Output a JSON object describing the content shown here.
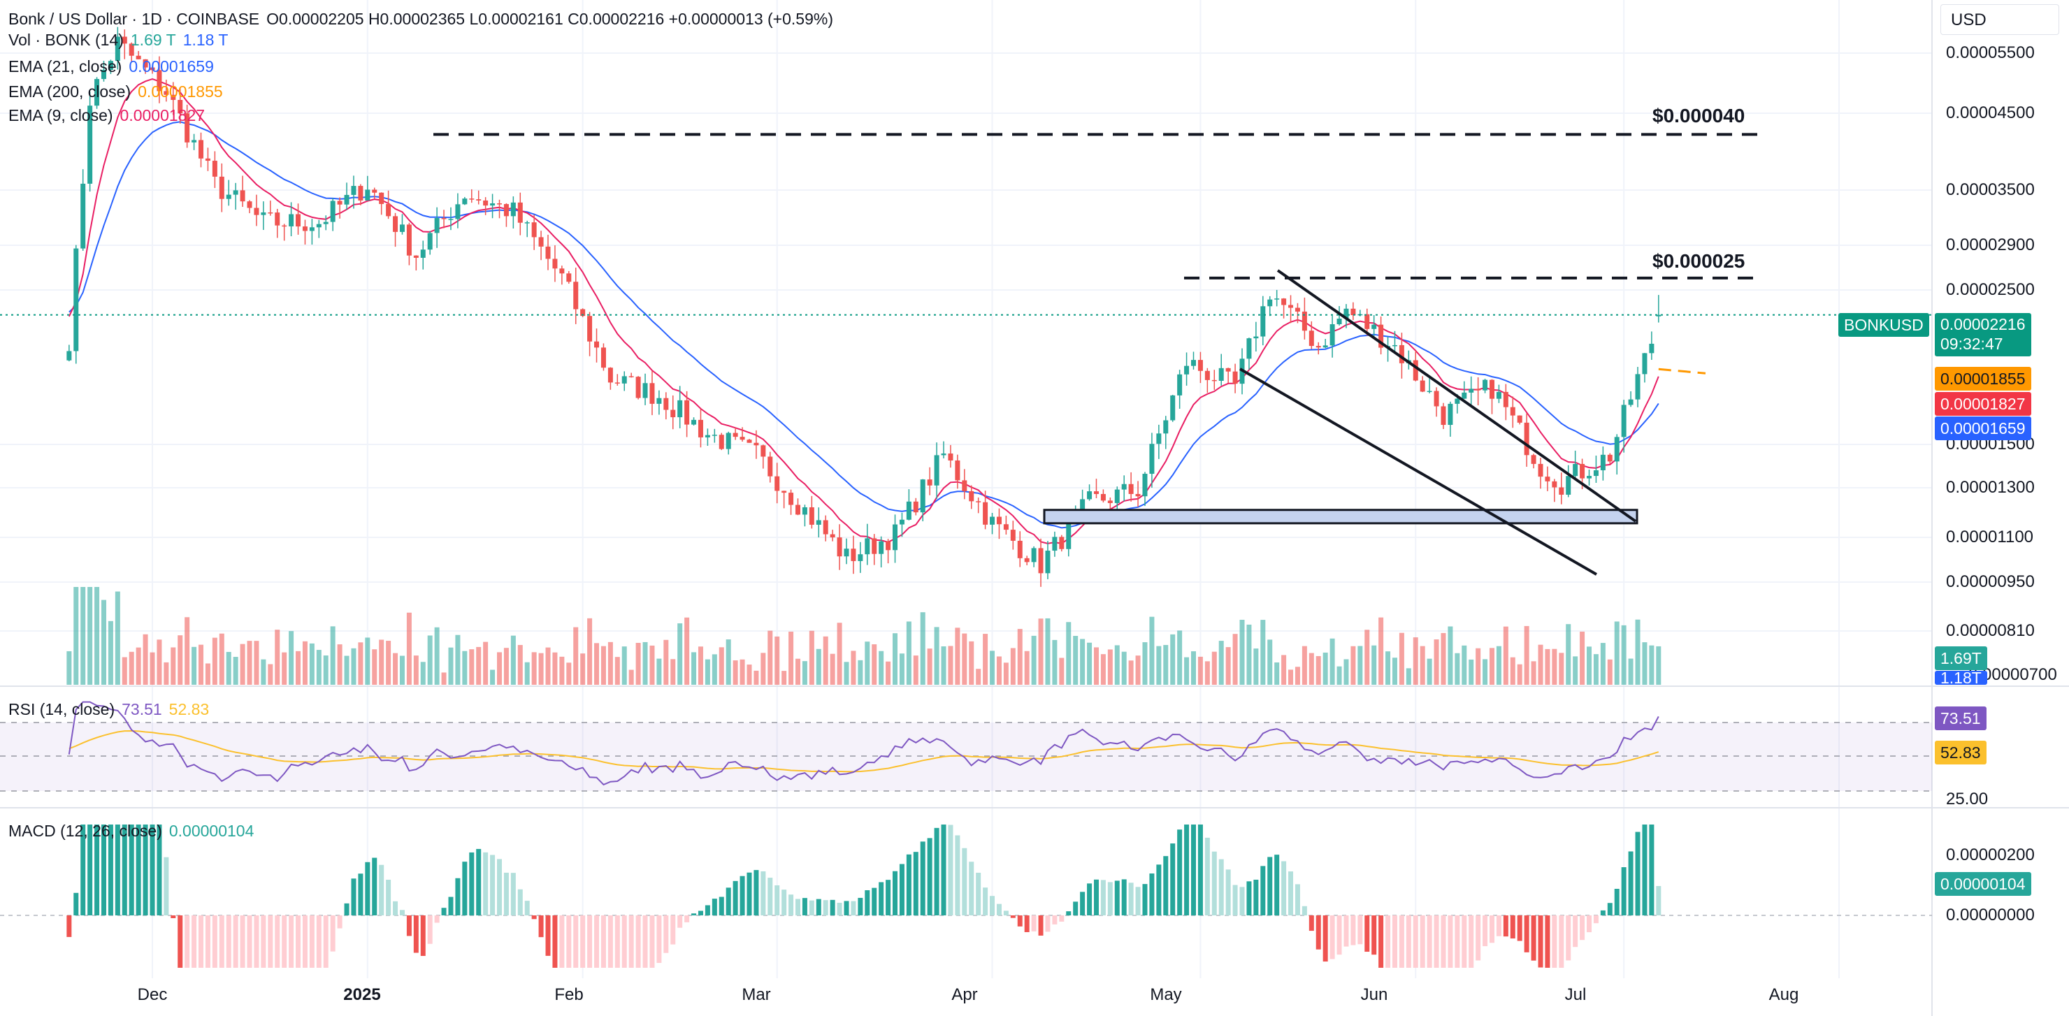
{
  "header": {
    "symbol": "Bonk / US Dollar · 1D · COINBASE",
    "ohlc": "O0.00002205  H0.00002365  L0.00002161  C0.00002216  +0.00000013 (+0.59%)",
    "currency": "USD"
  },
  "legend": {
    "vol_label": "Vol · BONK (14)",
    "vol_v1": "1.69 T",
    "vol_v2": "1.18 T",
    "ema21_label": "EMA (21, close)",
    "ema21_value": "0.00001659",
    "ema200_label": "EMA (200, close)",
    "ema200_value": "0.00001855",
    "ema9_label": "EMA (9, close)",
    "ema9_value": "0.00001827"
  },
  "rsi_legend": {
    "label": "RSI (14, close)",
    "value": "73.51",
    "ma": "52.83"
  },
  "macd_legend": {
    "label": "MACD (12, 26, close)",
    "value": "0.00000104"
  },
  "levels": {
    "upper": "$0.000040",
    "middle": "$0.000025"
  },
  "price_axis": [
    "0.00005500",
    "0.00004500",
    "0.00003500",
    "0.00002900",
    "0.00002500",
    "0.00001500",
    "0.00001300",
    "0.00001100",
    "0.00000950",
    "0.00000810",
    "0.00000700"
  ],
  "rsi_axis": [
    "25.00"
  ],
  "macd_axis": [
    "0.00000200",
    "0.00000000"
  ],
  "time_axis": [
    "Dec",
    "2025",
    "Feb",
    "Mar",
    "Apr",
    "May",
    "Jun",
    "Jul",
    "Aug"
  ],
  "badges": {
    "symbol": "BONKUSD",
    "last": "0.00002216",
    "countdown": "09:32:47",
    "ema200": "0.00001855",
    "ema9": "0.00001827",
    "ema21": "0.00001659",
    "vol1": "1.69T",
    "vol2": "1.18T",
    "rsi": "73.51",
    "rsi_ma": "52.83",
    "macd": "0.00000104"
  },
  "colors": {
    "up": "#26a69a",
    "down": "#ef5350",
    "ema9": "#e91e63",
    "ema21": "#2962ff",
    "ema200": "#ff9800",
    "rsi": "#7e57c2",
    "rsi_ma": "#fbc02d",
    "grid": "#f0f3fa"
  },
  "chart_data": {
    "type": "candlestick",
    "timeframe": "1D",
    "y_scale": "log",
    "ylim": [
      6.6e-06,
      5.8e-05
    ],
    "anchor_points": [
      {
        "date": "2024-11-19",
        "close": 2.05e-05
      },
      {
        "date": "2024-11-22",
        "close": 4.5e-05
      },
      {
        "date": "2024-11-26",
        "close": 5.4e-05
      },
      {
        "date": "2024-12-03",
        "close": 4.6e-05
      },
      {
        "date": "2024-12-10",
        "close": 3.4e-05
      },
      {
        "date": "2024-12-17",
        "close": 3e-05
      },
      {
        "date": "2024-12-25",
        "close": 3e-05
      },
      {
        "date": "2025-01-01",
        "close": 3.4e-05
      },
      {
        "date": "2025-01-08",
        "close": 2.7e-05
      },
      {
        "date": "2025-01-15",
        "close": 3.3e-05
      },
      {
        "date": "2025-01-22",
        "close": 3.1e-05
      },
      {
        "date": "2025-01-29",
        "close": 2.5e-05
      },
      {
        "date": "2025-02-05",
        "close": 1.8e-05
      },
      {
        "date": "2025-02-12",
        "close": 1.7e-05
      },
      {
        "date": "2025-02-19",
        "close": 1.5e-05
      },
      {
        "date": "2025-02-26",
        "close": 1.4e-05
      },
      {
        "date": "2025-03-04",
        "close": 1.2e-05
      },
      {
        "date": "2025-03-11",
        "close": 1e-05
      },
      {
        "date": "2025-03-18",
        "close": 1.08e-05
      },
      {
        "date": "2025-03-25",
        "close": 1.4e-05
      },
      {
        "date": "2025-04-01",
        "close": 1.12e-05
      },
      {
        "date": "2025-04-08",
        "close": 9.8e-06
      },
      {
        "date": "2025-04-15",
        "close": 1.2e-05
      },
      {
        "date": "2025-04-22",
        "close": 1.25e-05
      },
      {
        "date": "2025-04-29",
        "close": 1.9e-05
      },
      {
        "date": "2025-05-06",
        "close": 1.75e-05
      },
      {
        "date": "2025-05-11",
        "close": 2.4e-05
      },
      {
        "date": "2025-05-18",
        "close": 2e-05
      },
      {
        "date": "2025-05-22",
        "close": 2.25e-05
      },
      {
        "date": "2025-05-29",
        "close": 2e-05
      },
      {
        "date": "2025-06-05",
        "close": 1.6e-05
      },
      {
        "date": "2025-06-12",
        "close": 1.75e-05
      },
      {
        "date": "2025-06-19",
        "close": 1.35e-05
      },
      {
        "date": "2025-06-22",
        "close": 1.28e-05
      },
      {
        "date": "2025-06-29",
        "close": 1.4e-05
      },
      {
        "date": "2025-07-03",
        "close": 1.8e-05
      },
      {
        "date": "2025-07-06",
        "close": 2.16e-05
      }
    ],
    "last": {
      "open": 2.205e-05,
      "high": 2.365e-05,
      "low": 2.161e-05,
      "close": 2.216e-05
    },
    "indicators": {
      "EMA9": 1.827e-05,
      "EMA21": 1.659e-05,
      "EMA200": 1.855e-05,
      "RSI14": 73.51,
      "RSI_MA": 52.83,
      "MACD": 1.04e-06,
      "volume": [
        "1.69T",
        "1.18T"
      ]
    },
    "annotations": {
      "resistance_levels": [
        4e-05,
        2.5e-05
      ],
      "support_zone": [
        1.12e-05,
        1.17e-05
      ],
      "falling_wedge": true
    }
  }
}
